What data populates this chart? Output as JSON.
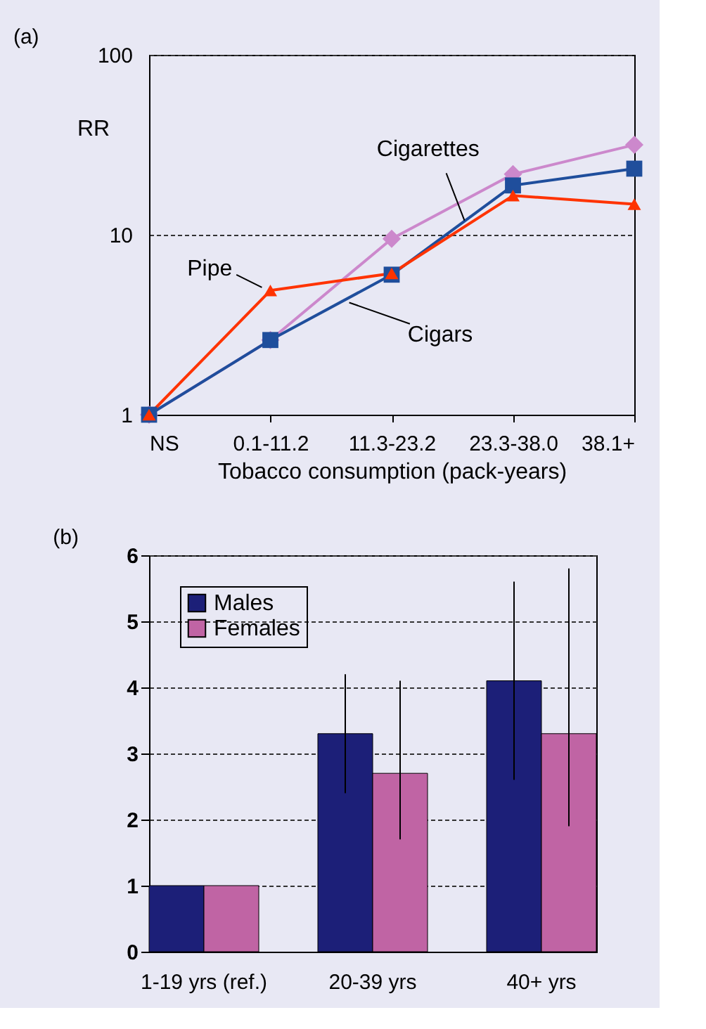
{
  "chart_data": [
    {
      "type": "line",
      "title": "(a)",
      "xlabel": "Tobacco consumption (pack-years)",
      "ylabel": "RR",
      "log": true,
      "ylim": [
        1,
        100
      ],
      "yticks": [
        1,
        10,
        100
      ],
      "grid": "y",
      "legend": false,
      "categories": [
        "NS",
        "0.1-11.2",
        "11.3-23.2",
        "23.3-38.0",
        "38.1+"
      ],
      "series": [
        {
          "name": "Cigarettes",
          "color": "#cc88cc",
          "marker": "diamond",
          "values": [
            1,
            2.6,
            9.5,
            21.7,
            31.6
          ]
        },
        {
          "name": "Cigars",
          "color": "#1f4e9c",
          "marker": "square",
          "values": [
            1,
            2.6,
            6.0,
            18.8,
            23.3
          ]
        },
        {
          "name": "Pipe",
          "color": "#ff3300",
          "marker": "triangle",
          "values": [
            1,
            4.9,
            6.1,
            16.5,
            14.8
          ]
        }
      ]
    },
    {
      "type": "bar",
      "title": "(b)",
      "ylim": [
        0,
        6
      ],
      "yticks": [
        0,
        1,
        2,
        3,
        4,
        5,
        6
      ],
      "grid": "y",
      "legend": "top left",
      "categories": [
        "1-19 yrs (ref.)",
        "20-39 yrs",
        "40+ yrs"
      ],
      "series": [
        {
          "name": "Males",
          "color": "#1c1f78",
          "values": [
            1,
            3.3,
            4.1
          ],
          "errors": [
            null,
            0.9,
            1.5
          ]
        },
        {
          "name": "Females",
          "color": "#c064a4",
          "values": [
            1,
            2.7,
            3.3
          ],
          "errors": [
            null,
            [
              1.7,
              4.1
            ],
            [
              1.9,
              5.8
            ]
          ]
        }
      ]
    }
  ]
}
